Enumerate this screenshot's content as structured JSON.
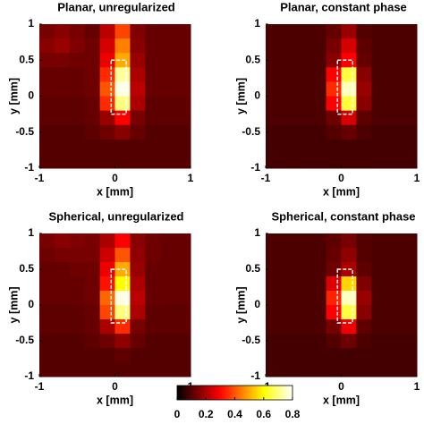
{
  "chart_data": [
    {
      "type": "heatmap",
      "title": "Planar, unregularized",
      "xlabel": "x [mm]",
      "ylabel": "y [mm]",
      "xlim": [
        -1,
        1
      ],
      "ylim": [
        -1,
        1
      ],
      "xticks": [
        -1,
        0,
        1
      ],
      "yticks": [
        -1,
        -0.5,
        0,
        0.5,
        1
      ],
      "roi": {
        "x": [
          -0.05,
          0.15
        ],
        "y": [
          -0.25,
          0.5
        ]
      },
      "z": [
        [
          0.14,
          0.16,
          0.14,
          0.12,
          0.22,
          0.38,
          0.15,
          0.12,
          0.12,
          0.12
        ],
        [
          0.16,
          0.18,
          0.15,
          0.13,
          0.25,
          0.45,
          0.16,
          0.12,
          0.12,
          0.12
        ],
        [
          0.14,
          0.14,
          0.13,
          0.13,
          0.28,
          0.5,
          0.18,
          0.12,
          0.12,
          0.12
        ],
        [
          0.12,
          0.12,
          0.12,
          0.13,
          0.35,
          0.72,
          0.2,
          0.12,
          0.12,
          0.12
        ],
        [
          0.12,
          0.12,
          0.12,
          0.13,
          0.4,
          0.78,
          0.22,
          0.12,
          0.12,
          0.12
        ],
        [
          0.11,
          0.11,
          0.11,
          0.12,
          0.35,
          0.7,
          0.2,
          0.11,
          0.11,
          0.11
        ],
        [
          0.11,
          0.11,
          0.11,
          0.12,
          0.18,
          0.3,
          0.14,
          0.11,
          0.11,
          0.11
        ],
        [
          0.1,
          0.1,
          0.1,
          0.11,
          0.13,
          0.16,
          0.12,
          0.1,
          0.1,
          0.1
        ],
        [
          0.1,
          0.1,
          0.1,
          0.1,
          0.1,
          0.1,
          0.1,
          0.1,
          0.1,
          0.1
        ],
        [
          0.1,
          0.1,
          0.1,
          0.1,
          0.1,
          0.1,
          0.1,
          0.1,
          0.1,
          0.1
        ]
      ]
    },
    {
      "type": "heatmap",
      "title": "Planar, constant phase",
      "xlabel": "x [mm]",
      "ylabel": "y [mm]",
      "xlim": [
        -1,
        1
      ],
      "ylim": [
        -1,
        1
      ],
      "xticks": [
        -1,
        0,
        1
      ],
      "yticks": [
        -1,
        -0.5,
        0,
        0.5,
        1
      ],
      "roi": {
        "x": [
          -0.05,
          0.15
        ],
        "y": [
          -0.25,
          0.5
        ]
      },
      "z": [
        [
          0.09,
          0.09,
          0.09,
          0.09,
          0.12,
          0.18,
          0.1,
          0.09,
          0.09,
          0.09
        ],
        [
          0.09,
          0.09,
          0.09,
          0.09,
          0.14,
          0.25,
          0.11,
          0.09,
          0.09,
          0.09
        ],
        [
          0.09,
          0.09,
          0.09,
          0.09,
          0.16,
          0.3,
          0.12,
          0.09,
          0.09,
          0.09
        ],
        [
          0.09,
          0.09,
          0.09,
          0.09,
          0.3,
          0.65,
          0.16,
          0.09,
          0.09,
          0.09
        ],
        [
          0.09,
          0.09,
          0.09,
          0.09,
          0.35,
          0.75,
          0.18,
          0.09,
          0.09,
          0.09
        ],
        [
          0.09,
          0.09,
          0.09,
          0.09,
          0.3,
          0.65,
          0.16,
          0.09,
          0.09,
          0.09
        ],
        [
          0.09,
          0.09,
          0.09,
          0.09,
          0.13,
          0.25,
          0.11,
          0.09,
          0.09,
          0.09
        ],
        [
          0.08,
          0.08,
          0.08,
          0.08,
          0.1,
          0.12,
          0.09,
          0.08,
          0.08,
          0.08
        ],
        [
          0.08,
          0.08,
          0.08,
          0.08,
          0.08,
          0.08,
          0.08,
          0.08,
          0.08,
          0.08
        ],
        [
          0.08,
          0.08,
          0.08,
          0.08,
          0.08,
          0.08,
          0.08,
          0.08,
          0.08,
          0.08
        ]
      ]
    },
    {
      "type": "heatmap",
      "title": "Spherical, unregularized",
      "xlabel": "x [mm]",
      "ylabel": "y [mm]",
      "xlim": [
        -1,
        1
      ],
      "ylim": [
        -1,
        1
      ],
      "xticks": [
        -1,
        0,
        1
      ],
      "yticks": [
        -1,
        -0.5,
        0,
        0.5,
        1
      ],
      "roi": {
        "x": [
          -0.05,
          0.15
        ],
        "y": [
          -0.25,
          0.5
        ]
      },
      "z": [
        [
          0.14,
          0.16,
          0.15,
          0.14,
          0.2,
          0.3,
          0.16,
          0.13,
          0.12,
          0.12
        ],
        [
          0.13,
          0.14,
          0.14,
          0.14,
          0.24,
          0.4,
          0.17,
          0.13,
          0.12,
          0.12
        ],
        [
          0.12,
          0.12,
          0.13,
          0.13,
          0.28,
          0.5,
          0.18,
          0.12,
          0.12,
          0.12
        ],
        [
          0.12,
          0.12,
          0.12,
          0.13,
          0.32,
          0.6,
          0.2,
          0.12,
          0.12,
          0.12
        ],
        [
          0.12,
          0.12,
          0.12,
          0.13,
          0.42,
          0.78,
          0.22,
          0.12,
          0.12,
          0.12
        ],
        [
          0.11,
          0.11,
          0.11,
          0.12,
          0.38,
          0.7,
          0.2,
          0.11,
          0.11,
          0.11
        ],
        [
          0.11,
          0.11,
          0.11,
          0.12,
          0.2,
          0.35,
          0.14,
          0.11,
          0.11,
          0.11
        ],
        [
          0.1,
          0.1,
          0.1,
          0.11,
          0.13,
          0.17,
          0.12,
          0.1,
          0.1,
          0.1
        ],
        [
          0.1,
          0.1,
          0.1,
          0.1,
          0.1,
          0.11,
          0.1,
          0.1,
          0.1,
          0.1
        ],
        [
          0.1,
          0.1,
          0.1,
          0.1,
          0.1,
          0.1,
          0.1,
          0.1,
          0.1,
          0.1
        ]
      ]
    },
    {
      "type": "heatmap",
      "title": "Spherical, constant phase",
      "xlabel": "x [mm]",
      "ylabel": "y [mm]",
      "xlim": [
        -1,
        1
      ],
      "ylim": [
        -1,
        1
      ],
      "xticks": [
        -1,
        0,
        1
      ],
      "yticks": [
        -1,
        -0.5,
        0,
        0.5,
        1
      ],
      "roi": {
        "x": [
          -0.05,
          0.15
        ],
        "y": [
          -0.25,
          0.5
        ]
      },
      "z": [
        [
          0.09,
          0.09,
          0.09,
          0.09,
          0.11,
          0.14,
          0.1,
          0.09,
          0.09,
          0.09
        ],
        [
          0.09,
          0.09,
          0.09,
          0.09,
          0.12,
          0.17,
          0.1,
          0.09,
          0.09,
          0.09
        ],
        [
          0.09,
          0.09,
          0.09,
          0.09,
          0.13,
          0.2,
          0.11,
          0.09,
          0.09,
          0.09
        ],
        [
          0.09,
          0.09,
          0.09,
          0.09,
          0.26,
          0.55,
          0.15,
          0.09,
          0.09,
          0.09
        ],
        [
          0.09,
          0.09,
          0.09,
          0.09,
          0.34,
          0.75,
          0.18,
          0.09,
          0.09,
          0.09
        ],
        [
          0.09,
          0.09,
          0.09,
          0.09,
          0.3,
          0.65,
          0.16,
          0.09,
          0.09,
          0.09
        ],
        [
          0.09,
          0.09,
          0.09,
          0.09,
          0.14,
          0.28,
          0.11,
          0.09,
          0.09,
          0.09
        ],
        [
          0.08,
          0.08,
          0.08,
          0.08,
          0.1,
          0.13,
          0.09,
          0.08,
          0.08,
          0.08
        ],
        [
          0.08,
          0.08,
          0.08,
          0.08,
          0.08,
          0.08,
          0.08,
          0.08,
          0.08,
          0.08
        ],
        [
          0.08,
          0.08,
          0.08,
          0.08,
          0.08,
          0.08,
          0.08,
          0.08,
          0.08,
          0.08
        ]
      ]
    }
  ],
  "colorbar": {
    "colormap": "hot",
    "clim": [
      0,
      0.8
    ],
    "ticks": [
      0,
      0.2,
      0.4,
      0.6,
      0.8
    ]
  }
}
